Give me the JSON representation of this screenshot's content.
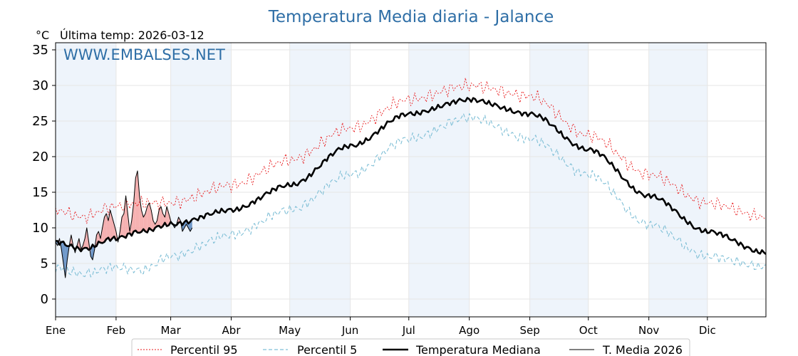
{
  "chart_data": {
    "type": "line",
    "title": "Temperatura Media diaria - Jalance",
    "unit_label": "°C",
    "last_temp_label": "Última temp: 2026-03-12",
    "watermark": "WWW.EMBALSES.NET",
    "xlabel": "",
    "ylabel": "",
    "ylim": [
      -2.5,
      36
    ],
    "xlim": [
      1,
      365
    ],
    "grid": true,
    "legend_position": "bottom",
    "y_ticks": [
      0,
      5,
      10,
      15,
      20,
      25,
      30,
      35
    ],
    "x_ticks": [
      {
        "day": 1,
        "label": "Ene"
      },
      {
        "day": 32,
        "label": "Feb"
      },
      {
        "day": 60,
        "label": "Mar"
      },
      {
        "day": 91,
        "label": "Abr"
      },
      {
        "day": 121,
        "label": "May"
      },
      {
        "day": 152,
        "label": "Jun"
      },
      {
        "day": 182,
        "label": "Jul"
      },
      {
        "day": 213,
        "label": "Ago"
      },
      {
        "day": 244,
        "label": "Sep"
      },
      {
        "day": 274,
        "label": "Oct"
      },
      {
        "day": 305,
        "label": "Nov"
      },
      {
        "day": 335,
        "label": "Dic"
      }
    ],
    "shaded_months": [
      [
        1,
        32
      ],
      [
        60,
        91
      ],
      [
        121,
        152
      ],
      [
        182,
        213
      ],
      [
        244,
        274
      ],
      [
        305,
        335
      ]
    ],
    "colors": {
      "title": "#2e6ea6",
      "watermark": "#2e6ea6",
      "p95": "#e8191b",
      "p5": "#7fbfd6",
      "median": "#000000",
      "current": "#000000",
      "above_fill": "#f4a3a3",
      "below_fill": "#4f81bd",
      "shade": "#eef4fb",
      "grid": "#e6e6e6"
    },
    "series": [
      {
        "name": "Percentil 95",
        "style": "dotted",
        "key_points": [
          [
            1,
            12.5
          ],
          [
            15,
            11.5
          ],
          [
            31,
            13.0
          ],
          [
            45,
            13.5
          ],
          [
            60,
            13.5
          ],
          [
            91,
            16.0
          ],
          [
            121,
            19.5
          ],
          [
            152,
            24.0
          ],
          [
            182,
            28.0
          ],
          [
            213,
            30.0
          ],
          [
            244,
            28.5
          ],
          [
            274,
            23.0
          ],
          [
            305,
            17.5
          ],
          [
            335,
            13.5
          ],
          [
            365,
            11.5
          ]
        ],
        "values": []
      },
      {
        "name": "Percentil 5",
        "style": "dashed",
        "key_points": [
          [
            1,
            4.5
          ],
          [
            15,
            3.5
          ],
          [
            31,
            4.5
          ],
          [
            45,
            4.0
          ],
          [
            60,
            6.0
          ],
          [
            91,
            9.0
          ],
          [
            121,
            12.5
          ],
          [
            152,
            17.5
          ],
          [
            182,
            22.5
          ],
          [
            213,
            25.5
          ],
          [
            244,
            22.5
          ],
          [
            274,
            17.5
          ],
          [
            305,
            10.5
          ],
          [
            335,
            6.0
          ],
          [
            365,
            4.5
          ]
        ],
        "values": []
      },
      {
        "name": "Temperatura Mediana",
        "style": "thick",
        "key_points": [
          [
            1,
            8.0
          ],
          [
            15,
            7.0
          ],
          [
            31,
            8.5
          ],
          [
            45,
            9.5
          ],
          [
            60,
            10.5
          ],
          [
            91,
            12.5
          ],
          [
            121,
            16.0
          ],
          [
            152,
            21.5
          ],
          [
            182,
            26.0
          ],
          [
            213,
            28.0
          ],
          [
            244,
            26.0
          ],
          [
            274,
            21.0
          ],
          [
            305,
            14.5
          ],
          [
            335,
            9.5
          ],
          [
            365,
            6.5
          ]
        ],
        "values": []
      },
      {
        "name": "T. Media 2026",
        "style": "thin",
        "x": [
          1,
          2,
          3,
          4,
          5,
          6,
          7,
          8,
          9,
          10,
          11,
          12,
          13,
          14,
          15,
          16,
          17,
          18,
          19,
          20,
          21,
          22,
          23,
          24,
          25,
          26,
          27,
          28,
          29,
          30,
          31,
          32,
          33,
          34,
          35,
          36,
          37,
          38,
          39,
          40,
          41,
          42,
          43,
          44,
          45,
          46,
          47,
          48,
          49,
          50,
          51,
          52,
          53,
          54,
          55,
          56,
          57,
          58,
          59,
          60,
          61,
          62,
          63,
          64,
          65,
          66,
          67,
          68,
          69,
          70,
          71
        ],
        "values": [
          8.0,
          7.5,
          8.5,
          7.0,
          5.0,
          3.0,
          5.5,
          7.5,
          9.0,
          7.5,
          6.5,
          7.5,
          8.5,
          7.0,
          7.5,
          8.5,
          10.0,
          8.0,
          6.0,
          5.5,
          7.0,
          9.0,
          9.5,
          8.5,
          10.0,
          11.5,
          12.0,
          11.0,
          12.5,
          11.5,
          10.5,
          9.5,
          8.0,
          9.5,
          11.5,
          12.0,
          14.5,
          12.0,
          9.5,
          11.0,
          13.5,
          17.0,
          18.0,
          14.5,
          12.5,
          11.5,
          12.0,
          13.0,
          13.5,
          12.5,
          11.0,
          10.5,
          11.0,
          12.5,
          13.0,
          12.0,
          11.5,
          13.0,
          12.0,
          11.0,
          10.5,
          10.0,
          10.5,
          11.5,
          11.0,
          9.5,
          10.0,
          10.5,
          10.0,
          9.5,
          10.0
        ]
      }
    ]
  }
}
